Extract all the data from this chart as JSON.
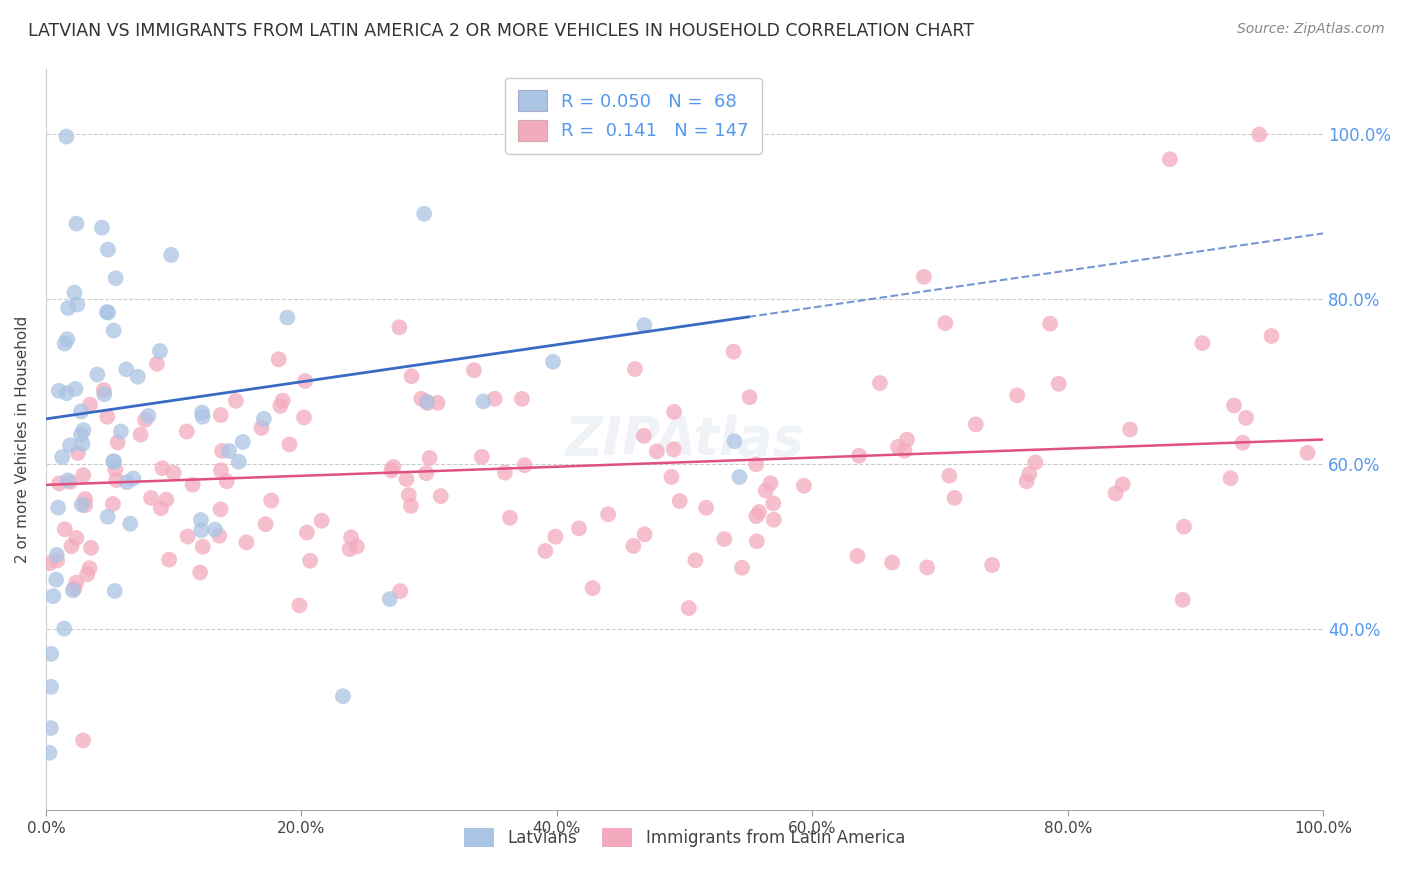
{
  "title": "LATVIAN VS IMMIGRANTS FROM LATIN AMERICA 2 OR MORE VEHICLES IN HOUSEHOLD CORRELATION CHART",
  "source": "Source: ZipAtlas.com",
  "ylabel": "2 or more Vehicles in Household",
  "xmin": 0.0,
  "xmax": 1.0,
  "ymin": 0.18,
  "ymax": 1.08,
  "x_tick_labels": [
    "0.0%",
    "20.0%",
    "40.0%",
    "60.0%",
    "80.0%",
    "100.0%"
  ],
  "x_tick_values": [
    0.0,
    0.2,
    0.4,
    0.6,
    0.8,
    1.0
  ],
  "y_tick_labels": [
    "40.0%",
    "60.0%",
    "80.0%",
    "100.0%"
  ],
  "y_tick_values": [
    0.4,
    0.6,
    0.8,
    1.0
  ],
  "latvian_color": "#aac4e4",
  "latin_color": "#f4aabe",
  "trend_latvian_color": "#3a6bc4",
  "trend_latin_color": "#e05080",
  "right_axis_color": "#5599ee",
  "grid_color": "#cccccc",
  "R_latvian": 0.05,
  "N_latvian": 68,
  "R_latin": 0.141,
  "N_latin": 147,
  "legend_labels": [
    "Latvians",
    "Immigrants from Latin America"
  ]
}
